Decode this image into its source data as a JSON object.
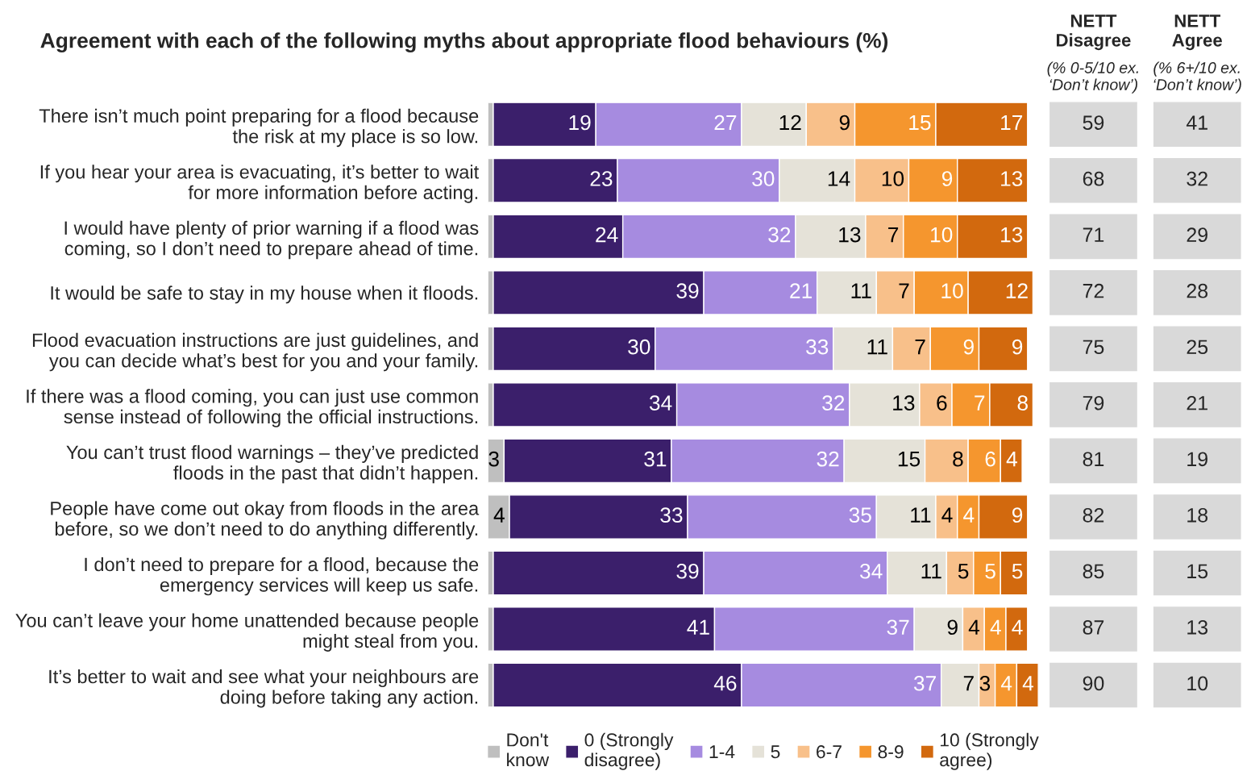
{
  "chart_data": [
    {
      "type": "bar",
      "orientation": "horizontal",
      "stacked": true,
      "title": "Agreement with each of the following myths about appropriate flood behaviours (%)",
      "categories": [
        "There isn’t much point preparing for a flood because\nthe risk at my place is so low.",
        "If you hear your area is evacuating, it’s better to wait\nfor more information before acting.",
        "I would have plenty of prior warning if a flood was\ncoming, so I don’t need to prepare ahead of time.",
        "It would be safe to stay in my house when it floods.",
        "Flood evacuation instructions are just guidelines, and\nyou can decide what’s best for you and your family.",
        "If there was a flood coming, you can just use common\nsense instead of following the official instructions.",
        "You can’t trust flood warnings – they’ve predicted\nfloods in the past that didn’t happen.",
        "People have come out okay from floods in the area\nbefore, so we don’t need to do anything differently.",
        "I don’t need to prepare for a flood, because the\nemergency services will keep us safe.",
        "You can’t leave your home unattended because people\nmight steal from you.",
        "It’s better to wait and see what your neighbours are\ndoing before taking any action."
      ],
      "xlim": [
        0,
        102
      ],
      "tick_labels": "y",
      "legend": "bottom",
      "grid": false,
      "series": [
        {
          "name": "Don't\nknow",
          "color": "#bfbfbf",
          "values": [
            1,
            1,
            1,
            1,
            1,
            1,
            3,
            4,
            1,
            1,
            1
          ],
          "value_labels": [
            null,
            null,
            null,
            null,
            null,
            null,
            "3",
            "4",
            null,
            null,
            null
          ]
        },
        {
          "name": "0 (Strongly\ndisagree)",
          "color": "#3b1f6b",
          "values": [
            19,
            23,
            24,
            39,
            30,
            34,
            31,
            33,
            39,
            41,
            46
          ],
          "value_labels": [
            "19",
            "23",
            "24",
            "39",
            "30",
            "34",
            "31",
            "33",
            "39",
            "41",
            "46"
          ]
        },
        {
          "name": "1-4",
          "color": "#a68be0",
          "values": [
            27,
            30,
            32,
            21,
            33,
            32,
            32,
            35,
            34,
            37,
            37
          ],
          "value_labels": [
            "27",
            "30",
            "32",
            "21",
            "33",
            "32",
            "32",
            "35",
            "34",
            "37",
            "37"
          ]
        },
        {
          "name": "5",
          "color": "#e5e2d8",
          "values": [
            12,
            14,
            13,
            11,
            11,
            13,
            15,
            11,
            11,
            9,
            7
          ],
          "value_labels": [
            "12",
            "14",
            "13",
            "11",
            "11",
            "13",
            "15",
            "11",
            "11",
            "9",
            "7"
          ]
        },
        {
          "name": "6-7",
          "color": "#f8c08a",
          "values": [
            9,
            10,
            7,
            7,
            7,
            6,
            8,
            4,
            5,
            4,
            3
          ],
          "value_labels": [
            "9",
            "10",
            "7",
            "7",
            "7",
            "6",
            "8",
            "4",
            "5",
            "4",
            "3"
          ]
        },
        {
          "name": "8-9",
          "color": "#f5962e",
          "values": [
            15,
            9,
            10,
            10,
            9,
            7,
            6,
            4,
            5,
            4,
            4
          ],
          "value_labels": [
            "15",
            "9",
            "10",
            "10",
            "9",
            "7",
            "6",
            "4",
            "5",
            "4",
            "4"
          ]
        },
        {
          "name": "10 (Strongly\nagree)",
          "color": "#d2690e",
          "values": [
            17,
            13,
            13,
            12,
            9,
            8,
            4,
            9,
            5,
            4,
            4
          ],
          "value_labels": [
            "17",
            "13",
            "13",
            "12",
            "9",
            "8",
            "4",
            "9",
            "5",
            "4",
            "4"
          ]
        }
      ]
    },
    {
      "type": "other",
      "title": "NETT\nDisagree",
      "subtitle": "(% 0-5/10 ex.\n‘Don’t know’)",
      "color": "#d9d9d9",
      "data_labels": true,
      "values": [
        59,
        68,
        71,
        72,
        75,
        79,
        81,
        82,
        85,
        87,
        90
      ]
    },
    {
      "type": "other",
      "title": "NETT\nAgree",
      "subtitle": "(% 6+/10 ex.\n‘Don’t know’)",
      "color": "#d9d9d9",
      "data_labels": true,
      "values": [
        41,
        32,
        29,
        28,
        25,
        21,
        19,
        18,
        15,
        13,
        10
      ]
    }
  ]
}
